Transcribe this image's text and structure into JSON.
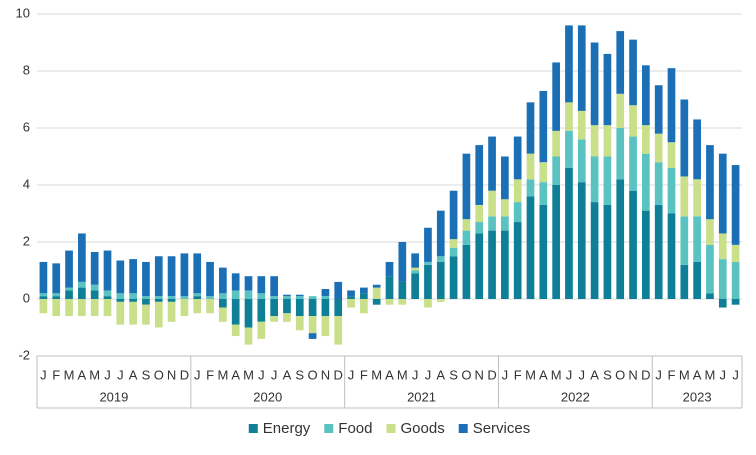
{
  "chart_data": {
    "type": "stacked_bar",
    "categories": [
      "J",
      "F",
      "M",
      "A",
      "M",
      "J",
      "J",
      "A",
      "S",
      "O",
      "N",
      "D",
      "J",
      "F",
      "M",
      "A",
      "M",
      "J",
      "J",
      "A",
      "S",
      "O",
      "N",
      "D",
      "J",
      "F",
      "M",
      "A",
      "M",
      "J",
      "J",
      "A",
      "S",
      "O",
      "N",
      "D",
      "J",
      "F",
      "M",
      "A",
      "M",
      "J",
      "J",
      "A",
      "S",
      "O",
      "N",
      "D",
      "J",
      "F",
      "M",
      "A",
      "M",
      "J",
      "J"
    ],
    "x_groups": [
      {
        "label": "2019",
        "size": 12
      },
      {
        "label": "2020",
        "size": 12
      },
      {
        "label": "2021",
        "size": 12
      },
      {
        "label": "2022",
        "size": 12
      },
      {
        "label": "2023",
        "size": 7
      }
    ],
    "series": [
      {
        "name": "Energy",
        "color": "#0e7f96",
        "values": [
          0.1,
          0.1,
          0.3,
          0.4,
          0.3,
          0.1,
          -0.1,
          -0.1,
          -0.2,
          -0.1,
          -0.1,
          0.0,
          0.1,
          0.0,
          -0.3,
          -0.9,
          -1.0,
          -0.8,
          -0.6,
          -0.5,
          -0.6,
          -0.6,
          -0.6,
          -0.6,
          0.1,
          0.2,
          -0.2,
          0.8,
          0.6,
          0.9,
          1.2,
          1.3,
          1.5,
          1.9,
          2.3,
          2.4,
          2.4,
          2.7,
          3.6,
          3.3,
          4.0,
          4.6,
          4.1,
          3.4,
          3.3,
          4.2,
          3.8,
          3.1,
          3.3,
          3.0,
          1.2,
          1.3,
          0.2,
          -0.3,
          -0.2
        ]
      },
      {
        "name": "Food",
        "color": "#5bc2c2",
        "values": [
          0.1,
          0.1,
          0.1,
          0.2,
          0.2,
          0.2,
          0.2,
          0.2,
          0.1,
          0.1,
          0.1,
          0.1,
          0.1,
          0.1,
          0.2,
          0.3,
          0.3,
          0.2,
          0.1,
          0.1,
          0.1,
          0.1,
          0.1,
          0.0,
          0.0,
          0.0,
          0.0,
          0.0,
          0.0,
          0.1,
          0.1,
          0.2,
          0.3,
          0.5,
          0.4,
          0.5,
          0.5,
          0.7,
          0.6,
          0.8,
          1.0,
          1.3,
          1.5,
          1.6,
          1.7,
          1.8,
          1.9,
          2.0,
          1.5,
          1.6,
          1.7,
          1.6,
          1.7,
          1.4,
          1.3
        ]
      },
      {
        "name": "Goods",
        "color": "#c9df8a",
        "values": [
          -0.5,
          -0.6,
          -0.6,
          -0.6,
          -0.6,
          -0.6,
          -0.8,
          -0.8,
          -0.7,
          -0.9,
          -0.7,
          -0.6,
          -0.5,
          -0.5,
          -0.5,
          -0.4,
          -0.6,
          -0.6,
          -0.2,
          -0.3,
          -0.5,
          -0.6,
          -0.7,
          -1.0,
          -0.3,
          -0.5,
          0.4,
          -0.2,
          -0.2,
          0.1,
          -0.3,
          -0.1,
          0.3,
          0.4,
          0.6,
          0.9,
          0.6,
          0.8,
          0.9,
          0.7,
          0.9,
          1.0,
          1.0,
          1.1,
          1.1,
          1.2,
          1.1,
          1.0,
          1.0,
          0.9,
          1.4,
          1.3,
          0.9,
          0.9,
          0.6
        ]
      },
      {
        "name": "Services",
        "color": "#1a6fb5",
        "values": [
          1.1,
          1.05,
          1.3,
          1.7,
          1.15,
          1.4,
          1.15,
          1.2,
          1.2,
          1.4,
          1.4,
          1.5,
          1.4,
          1.2,
          0.9,
          0.6,
          0.5,
          0.6,
          0.7,
          0.05,
          0.05,
          -0.2,
          0.25,
          0.6,
          0.2,
          0.2,
          0.1,
          0.5,
          1.4,
          0.5,
          1.2,
          1.6,
          1.7,
          2.3,
          2.1,
          1.9,
          1.5,
          1.5,
          1.8,
          2.5,
          2.4,
          2.7,
          3.0,
          2.9,
          2.5,
          2.2,
          2.3,
          2.1,
          1.7,
          2.6,
          2.7,
          2.1,
          2.6,
          2.8,
          2.8
        ]
      }
    ],
    "ylim": [
      -2,
      10
    ],
    "yticks": [
      -2,
      0,
      2,
      4,
      6,
      8,
      10
    ],
    "grid": true,
    "legend": "bottom"
  }
}
